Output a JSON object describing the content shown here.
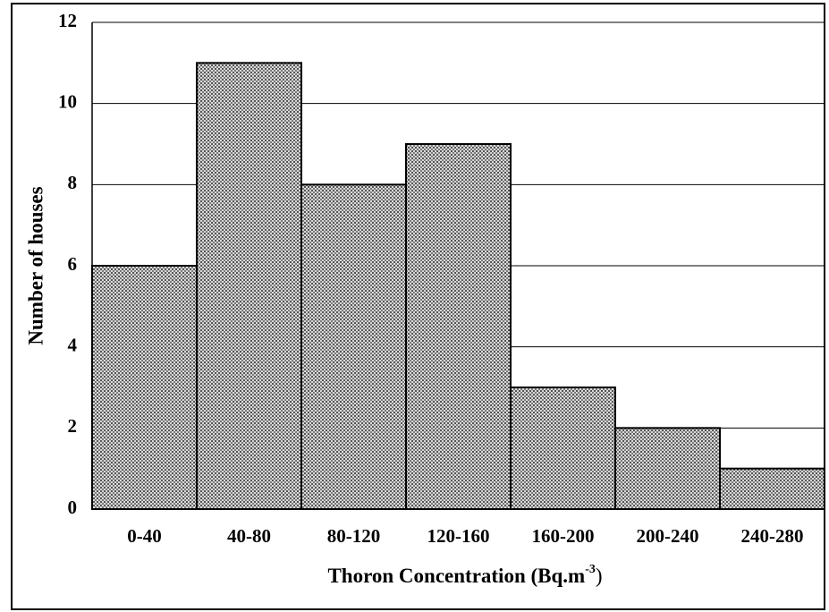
{
  "chart_data": {
    "type": "bar",
    "y_label": "Number of houses",
    "x_label": "Thoron Concentration (Bq.m",
    "x_label_sup": "-3",
    "x_label_end": ")",
    "categories": [
      "0-40",
      "40-80",
      "80-120",
      "120-160",
      "160-200",
      "200-240",
      "240-280"
    ],
    "values": [
      6,
      11,
      8,
      9,
      3,
      2,
      1
    ],
    "color": "#9a9a9a",
    "ylim": [
      0,
      12
    ],
    "yticks": [
      0,
      2,
      4,
      6,
      8,
      10,
      12
    ],
    "grid": true
  }
}
